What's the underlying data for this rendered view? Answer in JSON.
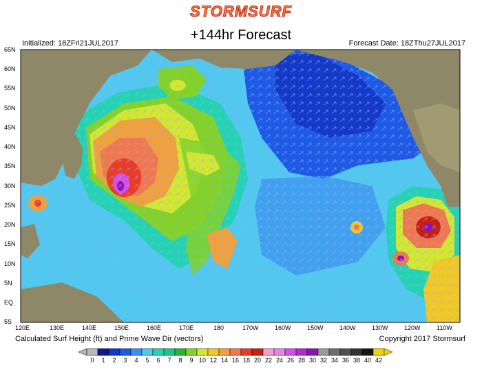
{
  "header": {
    "brand": "STORMSURF",
    "title": "+144hr Forecast",
    "initialized": "Initialized: 18ZFri21JUL2017",
    "forecast_date": "Forecast Date: 18ZThu27JUL2017"
  },
  "footer": {
    "caption": "Calculated Surf Height (ft) and Prime Wave Dir (vectors)",
    "copyright": "Copyright 2017 Stormsurf"
  },
  "axes": {
    "lat_labels": [
      "65N",
      "60N",
      "55N",
      "50N",
      "45N",
      "40N",
      "35N",
      "30N",
      "25N",
      "20N",
      "15N",
      "10N",
      "5N",
      "EQ",
      "5S"
    ],
    "lon_labels": [
      "120E",
      "130E",
      "140E",
      "150E",
      "160E",
      "170E",
      "180",
      "170W",
      "160W",
      "150W",
      "140W",
      "130W",
      "120W",
      "110W"
    ]
  },
  "legend": {
    "values": [
      "0",
      "1",
      "2",
      "3",
      "4",
      "5",
      "6",
      "7",
      "8",
      "9",
      "10",
      "12",
      "14",
      "16",
      "18",
      "20",
      "22",
      "24",
      "26",
      "28",
      "30",
      "32",
      "34",
      "36",
      "38",
      "40",
      "42"
    ],
    "colors": [
      "#b8b8b8",
      "#0b1a8c",
      "#1438c8",
      "#1e5ae6",
      "#3c8ef0",
      "#50c8f0",
      "#24d2b4",
      "#1ec882",
      "#28b43c",
      "#82d228",
      "#d2e632",
      "#f0c828",
      "#f0a03c",
      "#f07850",
      "#e63c28",
      "#c81e14",
      "#f0a0c8",
      "#e682e6",
      "#d250e6",
      "#b428d2",
      "#8c14b4",
      "#9a9a9a",
      "#6e6e6e",
      "#505050",
      "#323232",
      "#141414",
      "#f0d20a"
    ]
  },
  "colors": {
    "land": "#8f8868",
    "ocean_deep": "#1438c8",
    "storm_core": "#e63c28",
    "brand": "#ff7a3a"
  }
}
